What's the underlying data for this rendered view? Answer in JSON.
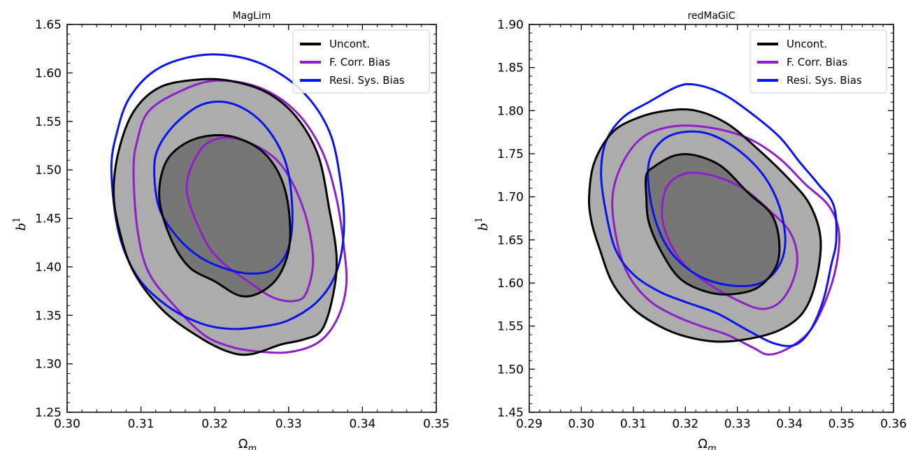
{
  "chart_data": [
    {
      "type": "contour",
      "title": "MagLim",
      "xlabel": "Ω",
      "xlabel_sub": "m",
      "ylabel": "b",
      "ylabel_sup": "1",
      "xlim": [
        0.3,
        0.35
      ],
      "ylim": [
        1.25,
        1.65
      ],
      "xticks": [
        "0.30",
        "0.31",
        "0.32",
        "0.33",
        "0.34",
        "0.35"
      ],
      "yticks": [
        "1.25",
        "1.30",
        "1.35",
        "1.40",
        "1.45",
        "1.50",
        "1.55",
        "1.60",
        "1.65"
      ],
      "legend_position": "top-right",
      "series": [
        {
          "name": "Uncont.",
          "color": "#000000",
          "filled": true,
          "outer": [
            [
              0.3063,
              1.478
            ],
            [
              0.307,
              1.44
            ],
            [
              0.309,
              1.395
            ],
            [
              0.313,
              1.355
            ],
            [
              0.318,
              1.327
            ],
            [
              0.322,
              1.312
            ],
            [
              0.325,
              1.31
            ],
            [
              0.329,
              1.32
            ],
            [
              0.332,
              1.325
            ],
            [
              0.3345,
              1.335
            ],
            [
              0.336,
              1.37
            ],
            [
              0.3365,
              1.41
            ],
            [
              0.3355,
              1.46
            ],
            [
              0.334,
              1.515
            ],
            [
              0.331,
              1.555
            ],
            [
              0.327,
              1.58
            ],
            [
              0.322,
              1.592
            ],
            [
              0.3175,
              1.593
            ],
            [
              0.3125,
              1.585
            ],
            [
              0.309,
              1.56
            ],
            [
              0.307,
              1.52
            ]
          ],
          "inner": [
            [
              0.3125,
              1.47
            ],
            [
              0.314,
              1.43
            ],
            [
              0.3165,
              1.4
            ],
            [
              0.32,
              1.385
            ],
            [
              0.3235,
              1.37
            ],
            [
              0.3265,
              1.375
            ],
            [
              0.329,
              1.395
            ],
            [
              0.3302,
              1.43
            ],
            [
              0.3295,
              1.48
            ],
            [
              0.327,
              1.515
            ],
            [
              0.323,
              1.533
            ],
            [
              0.319,
              1.535
            ],
            [
              0.3155,
              1.525
            ],
            [
              0.3132,
              1.505
            ]
          ]
        },
        {
          "name": "F. Corr. Bias",
          "color": "#8f1fc8",
          "filled": false,
          "outer": [
            [
              0.309,
              1.5
            ],
            [
              0.3095,
              1.44
            ],
            [
              0.311,
              1.395
            ],
            [
              0.3145,
              1.36
            ],
            [
              0.3185,
              1.33
            ],
            [
              0.322,
              1.318
            ],
            [
              0.3255,
              1.313
            ],
            [
              0.33,
              1.312
            ],
            [
              0.334,
              1.322
            ],
            [
              0.3365,
              1.345
            ],
            [
              0.3378,
              1.38
            ],
            [
              0.3375,
              1.42
            ],
            [
              0.3365,
              1.47
            ],
            [
              0.3345,
              1.52
            ],
            [
              0.331,
              1.56
            ],
            [
              0.326,
              1.585
            ],
            [
              0.32,
              1.592
            ],
            [
              0.315,
              1.58
            ],
            [
              0.311,
              1.56
            ],
            [
              0.3095,
              1.53
            ]
          ],
          "inner": [
            [
              0.3162,
              1.48
            ],
            [
              0.3185,
              1.43
            ],
            [
              0.321,
              1.405
            ],
            [
              0.3245,
              1.385
            ],
            [
              0.328,
              1.368
            ],
            [
              0.331,
              1.365
            ],
            [
              0.3325,
              1.375
            ],
            [
              0.3333,
              1.41
            ],
            [
              0.332,
              1.46
            ],
            [
              0.329,
              1.505
            ],
            [
              0.325,
              1.527
            ],
            [
              0.321,
              1.533
            ],
            [
              0.318,
              1.52
            ]
          ]
        },
        {
          "name": "Resi. Sys. Bias",
          "color": "#0a14e8",
          "filled": false,
          "outer": [
            [
              0.306,
              1.5
            ],
            [
              0.307,
              1.435
            ],
            [
              0.3095,
              1.39
            ],
            [
              0.3135,
              1.36
            ],
            [
              0.318,
              1.342
            ],
            [
              0.322,
              1.336
            ],
            [
              0.326,
              1.338
            ],
            [
              0.33,
              1.345
            ],
            [
              0.334,
              1.365
            ],
            [
              0.3365,
              1.395
            ],
            [
              0.3375,
              1.44
            ],
            [
              0.337,
              1.49
            ],
            [
              0.3355,
              1.54
            ],
            [
              0.332,
              1.58
            ],
            [
              0.327,
              1.607
            ],
            [
              0.322,
              1.618
            ],
            [
              0.317,
              1.617
            ],
            [
              0.312,
              1.603
            ],
            [
              0.3085,
              1.575
            ],
            [
              0.3068,
              1.54
            ]
          ],
          "inner": [
            [
              0.3118,
              1.5
            ],
            [
              0.3125,
              1.46
            ],
            [
              0.315,
              1.43
            ],
            [
              0.318,
              1.41
            ],
            [
              0.3215,
              1.398
            ],
            [
              0.325,
              1.393
            ],
            [
              0.328,
              1.398
            ],
            [
              0.33,
              1.42
            ],
            [
              0.3305,
              1.46
            ],
            [
              0.3295,
              1.51
            ],
            [
              0.3265,
              1.548
            ],
            [
              0.3225,
              1.568
            ],
            [
              0.3185,
              1.568
            ],
            [
              0.315,
              1.55
            ],
            [
              0.3125,
              1.525
            ]
          ]
        }
      ]
    },
    {
      "type": "contour",
      "title": "redMaGiC",
      "xlabel": "Ω",
      "xlabel_sub": "m",
      "ylabel": "b",
      "ylabel_sup": "1",
      "xlim": [
        0.29,
        0.36
      ],
      "ylim": [
        1.45,
        1.9
      ],
      "xticks": [
        "0.29",
        "0.30",
        "0.31",
        "0.32",
        "0.33",
        "0.34",
        "0.35",
        "0.36"
      ],
      "yticks": [
        "1.45",
        "1.50",
        "1.55",
        "1.60",
        "1.65",
        "1.70",
        "1.75",
        "1.80",
        "1.85",
        "1.90"
      ],
      "legend_position": "top-right",
      "series": [
        {
          "name": "Uncont.",
          "color": "#000000",
          "filled": true,
          "outer": [
            [
              0.3015,
              1.7
            ],
            [
              0.302,
              1.67
            ],
            [
              0.3035,
              1.64
            ],
            [
              0.306,
              1.6
            ],
            [
              0.31,
              1.57
            ],
            [
              0.315,
              1.55
            ],
            [
              0.32,
              1.538
            ],
            [
              0.326,
              1.532
            ],
            [
              0.332,
              1.535
            ],
            [
              0.338,
              1.545
            ],
            [
              0.3425,
              1.565
            ],
            [
              0.345,
              1.6
            ],
            [
              0.346,
              1.65
            ],
            [
              0.344,
              1.69
            ],
            [
              0.34,
              1.72
            ],
            [
              0.334,
              1.755
            ],
            [
              0.328,
              1.785
            ],
            [
              0.322,
              1.8
            ],
            [
              0.3165,
              1.8
            ],
            [
              0.311,
              1.792
            ],
            [
              0.306,
              1.775
            ],
            [
              0.3025,
              1.74
            ]
          ],
          "inner": [
            [
              0.3125,
              1.7
            ],
            [
              0.313,
              1.67
            ],
            [
              0.3155,
              1.635
            ],
            [
              0.319,
              1.605
            ],
            [
              0.324,
              1.59
            ],
            [
              0.329,
              1.587
            ],
            [
              0.334,
              1.595
            ],
            [
              0.3375,
              1.62
            ],
            [
              0.338,
              1.65
            ],
            [
              0.3365,
              1.68
            ],
            [
              0.332,
              1.705
            ],
            [
              0.327,
              1.735
            ],
            [
              0.322,
              1.748
            ],
            [
              0.318,
              1.748
            ],
            [
              0.314,
              1.735
            ],
            [
              0.3125,
              1.725
            ]
          ]
        },
        {
          "name": "F. Corr. Bias",
          "color": "#8f1fc8",
          "filled": false,
          "outer": [
            [
              0.306,
              1.7
            ],
            [
              0.3068,
              1.65
            ],
            [
              0.309,
              1.61
            ],
            [
              0.313,
              1.58
            ],
            [
              0.318,
              1.562
            ],
            [
              0.323,
              1.55
            ],
            [
              0.328,
              1.54
            ],
            [
              0.333,
              1.525
            ],
            [
              0.336,
              1.517
            ],
            [
              0.34,
              1.525
            ],
            [
              0.344,
              1.545
            ],
            [
              0.347,
              1.58
            ],
            [
              0.349,
              1.62
            ],
            [
              0.3495,
              1.66
            ],
            [
              0.3475,
              1.69
            ],
            [
              0.343,
              1.715
            ],
            [
              0.338,
              1.745
            ],
            [
              0.332,
              1.768
            ],
            [
              0.325,
              1.78
            ],
            [
              0.318,
              1.782
            ],
            [
              0.312,
              1.77
            ],
            [
              0.308,
              1.74
            ]
          ],
          "inner": [
            [
              0.3155,
              1.68
            ],
            [
              0.3168,
              1.65
            ],
            [
              0.32,
              1.62
            ],
            [
              0.325,
              1.597
            ],
            [
              0.33,
              1.58
            ],
            [
              0.3345,
              1.57
            ],
            [
              0.338,
              1.577
            ],
            [
              0.3405,
              1.6
            ],
            [
              0.3415,
              1.63
            ],
            [
              0.34,
              1.66
            ],
            [
              0.336,
              1.685
            ],
            [
              0.331,
              1.71
            ],
            [
              0.325,
              1.725
            ],
            [
              0.32,
              1.727
            ],
            [
              0.3165,
              1.712
            ]
          ]
        },
        {
          "name": "Resi. Sys. Bias",
          "color": "#0a14e8",
          "filled": false,
          "outer": [
            [
              0.3038,
              1.73
            ],
            [
              0.3045,
              1.69
            ],
            [
              0.3065,
              1.64
            ],
            [
              0.31,
              1.61
            ],
            [
              0.315,
              1.59
            ],
            [
              0.32,
              1.578
            ],
            [
              0.326,
              1.565
            ],
            [
              0.332,
              1.545
            ],
            [
              0.337,
              1.53
            ],
            [
              0.341,
              1.528
            ],
            [
              0.344,
              1.545
            ],
            [
              0.3465,
              1.58
            ],
            [
              0.348,
              1.62
            ],
            [
              0.349,
              1.65
            ],
            [
              0.3485,
              1.69
            ],
            [
              0.3455,
              1.715
            ],
            [
              0.342,
              1.74
            ],
            [
              0.338,
              1.77
            ],
            [
              0.332,
              1.8
            ],
            [
              0.327,
              1.82
            ],
            [
              0.322,
              1.83
            ],
            [
              0.3185,
              1.828
            ],
            [
              0.313,
              1.81
            ],
            [
              0.308,
              1.792
            ],
            [
              0.3048,
              1.765
            ]
          ],
          "inner": [
            [
              0.313,
              1.74
            ],
            [
              0.3132,
              1.7
            ],
            [
              0.315,
              1.66
            ],
            [
              0.318,
              1.63
            ],
            [
              0.323,
              1.607
            ],
            [
              0.329,
              1.597
            ],
            [
              0.3345,
              1.6
            ],
            [
              0.338,
              1.62
            ],
            [
              0.3392,
              1.65
            ],
            [
              0.338,
              1.69
            ],
            [
              0.335,
              1.725
            ],
            [
              0.33,
              1.755
            ],
            [
              0.3245,
              1.773
            ],
            [
              0.3195,
              1.775
            ],
            [
              0.3155,
              1.765
            ]
          ]
        }
      ]
    }
  ]
}
